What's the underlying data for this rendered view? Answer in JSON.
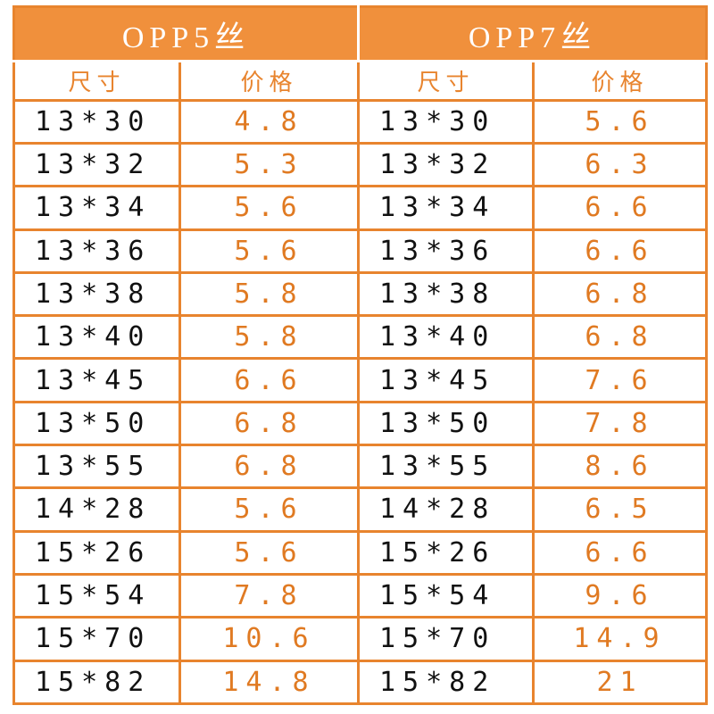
{
  "columns": [
    {
      "title": "OPP5丝",
      "size_label": "尺寸",
      "price_label": "价格"
    },
    {
      "title": "OPP7丝",
      "size_label": "尺寸",
      "price_label": "价格"
    }
  ],
  "rows": [
    {
      "size_a": "13*30",
      "price_a": "4.8",
      "size_b": "13*30",
      "price_b": "5.6"
    },
    {
      "size_a": "13*32",
      "price_a": "5.3",
      "size_b": "13*32",
      "price_b": "6.3"
    },
    {
      "size_a": "13*34",
      "price_a": "5.6",
      "size_b": "13*34",
      "price_b": "6.6"
    },
    {
      "size_a": "13*36",
      "price_a": "5.6",
      "size_b": "13*36",
      "price_b": "6.6"
    },
    {
      "size_a": "13*38",
      "price_a": "5.8",
      "size_b": "13*38",
      "price_b": "6.8"
    },
    {
      "size_a": "13*40",
      "price_a": "5.8",
      "size_b": "13*40",
      "price_b": "6.8"
    },
    {
      "size_a": "13*45",
      "price_a": "6.6",
      "size_b": "13*45",
      "price_b": "7.6"
    },
    {
      "size_a": "13*50",
      "price_a": "6.8",
      "size_b": "13*50",
      "price_b": "7.8"
    },
    {
      "size_a": "13*55",
      "price_a": "6.8",
      "size_b": "13*55",
      "price_b": "8.6"
    },
    {
      "size_a": "14*28",
      "price_a": "5.6",
      "size_b": "14*28",
      "price_b": "6.5"
    },
    {
      "size_a": "15*26",
      "price_a": "5.6",
      "size_b": "15*26",
      "price_b": "6.6"
    },
    {
      "size_a": "15*54",
      "price_a": "7.8",
      "size_b": "15*54",
      "price_b": "9.6"
    },
    {
      "size_a": "15*70",
      "price_a": "10.6",
      "size_b": "15*70",
      "price_b": "14.9"
    },
    {
      "size_a": "15*82",
      "price_a": "14.8",
      "size_b": "15*82",
      "price_b": "21"
    }
  ],
  "colors": {
    "header_bg": "#f0903c",
    "border": "#e8842e",
    "price_text": "#e07a22",
    "size_text": "#111111"
  }
}
